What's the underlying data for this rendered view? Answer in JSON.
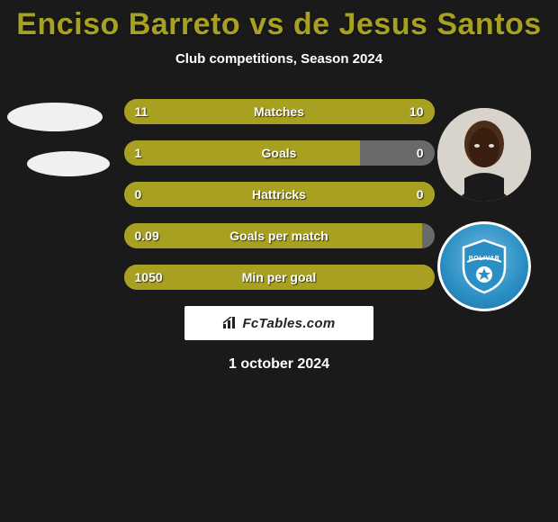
{
  "title": "Enciso Barreto vs de Jesus Santos",
  "subtitle": "Club competitions, Season 2024",
  "date_text": "1 october 2024",
  "branding_text": "FcTables.com",
  "colors": {
    "accent": "#a8a020",
    "neutral_bar": "#6a6a6a",
    "background": "#1a1a1a",
    "text": "#ffffff",
    "club_primary": "#2a8fc4"
  },
  "left_player": {
    "name": "Enciso Barreto"
  },
  "right_player": {
    "name": "de Jesus Santos",
    "club": "Bolivar"
  },
  "stats": [
    {
      "label": "Matches",
      "left_val": "11",
      "right_val": "10",
      "left_pct": 52,
      "right_pct": 48,
      "left_color": "#a8a020",
      "right_color": "#a8a020"
    },
    {
      "label": "Goals",
      "left_val": "1",
      "right_val": "0",
      "left_pct": 76,
      "right_pct": 0,
      "left_color": "#a8a020",
      "right_color": "#6a6a6a"
    },
    {
      "label": "Hattricks",
      "left_val": "0",
      "right_val": "0",
      "left_pct": 100,
      "right_pct": 0,
      "left_color": "#a8a020",
      "right_color": "#6a6a6a"
    },
    {
      "label": "Goals per match",
      "left_val": "0.09",
      "right_val": "",
      "left_pct": 96,
      "right_pct": 0,
      "left_color": "#a8a020",
      "right_color": "#6a6a6a"
    },
    {
      "label": "Min per goal",
      "left_val": "1050",
      "right_val": "",
      "left_pct": 100,
      "right_pct": 0,
      "left_color": "#a8a020",
      "right_color": "#6a6a6a"
    }
  ]
}
